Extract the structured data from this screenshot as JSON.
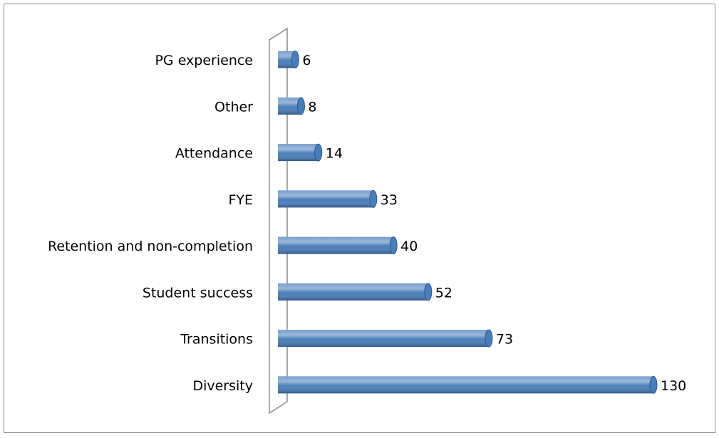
{
  "chart_data": {
    "type": "bar",
    "orientation": "horizontal",
    "categories": [
      "PG experience",
      "Other",
      "Attendance",
      "FYE",
      "Retention and non-completion",
      "Student success",
      "Transitions",
      "Diversity"
    ],
    "values": [
      6,
      8,
      14,
      33,
      40,
      52,
      73,
      130
    ],
    "color": "#4a7ebb"
  }
}
